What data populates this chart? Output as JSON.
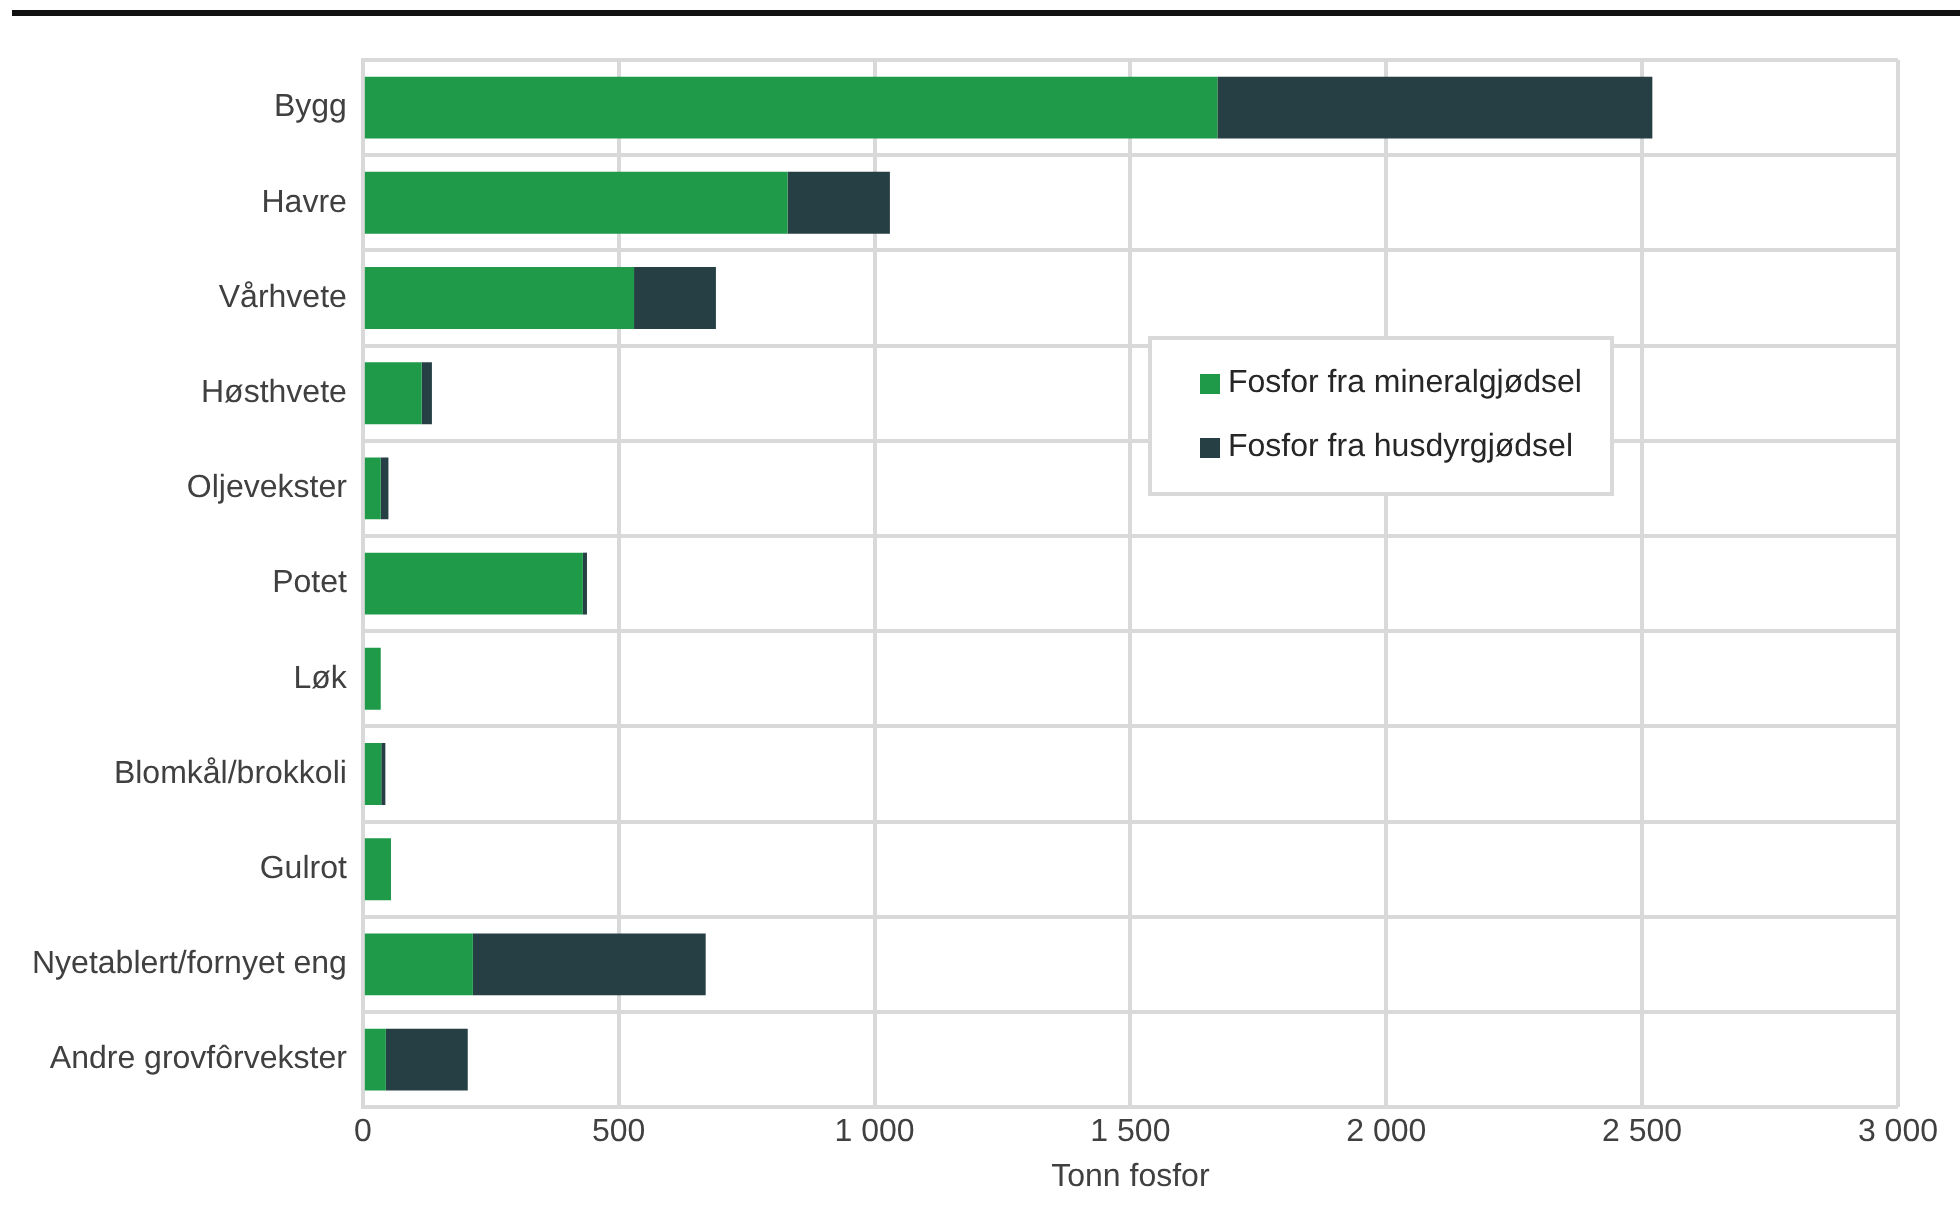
{
  "chart_data": {
    "type": "bar",
    "orientation": "horizontal",
    "stacked": true,
    "xlabel": "Tonn fosfor",
    "categories": [
      "Bygg",
      "Havre",
      "Vårhvete",
      "Høsthvete",
      "Oljevekster",
      "Potet",
      "Løk",
      "Blomkål/brokkoli",
      "Gulrot",
      "Nyetablert/fornyet eng",
      "Andre grovfôrvekster"
    ],
    "series": [
      {
        "name": "Fosfor fra mineralgjødsel",
        "color": "#1e9a48",
        "values": [
          1670,
          830,
          530,
          115,
          35,
          430,
          35,
          36,
          55,
          215,
          45
        ]
      },
      {
        "name": "Fosfor fra husdyrgjødsel",
        "color": "#263f44",
        "values": [
          850,
          200,
          160,
          20,
          15,
          8,
          0,
          8,
          0,
          455,
          160
        ]
      }
    ],
    "xlim": [
      0,
      3000
    ],
    "xticks": [
      0,
      500,
      {
        "value": 1000,
        "label": "1 000"
      },
      {
        "value": 1500,
        "label": "1 500"
      },
      {
        "value": 2000,
        "label": "2 000"
      },
      {
        "value": 2500,
        "label": "2 500"
      },
      {
        "value": 3000,
        "label": "3 000"
      }
    ],
    "grid": true,
    "legend": "right"
  }
}
